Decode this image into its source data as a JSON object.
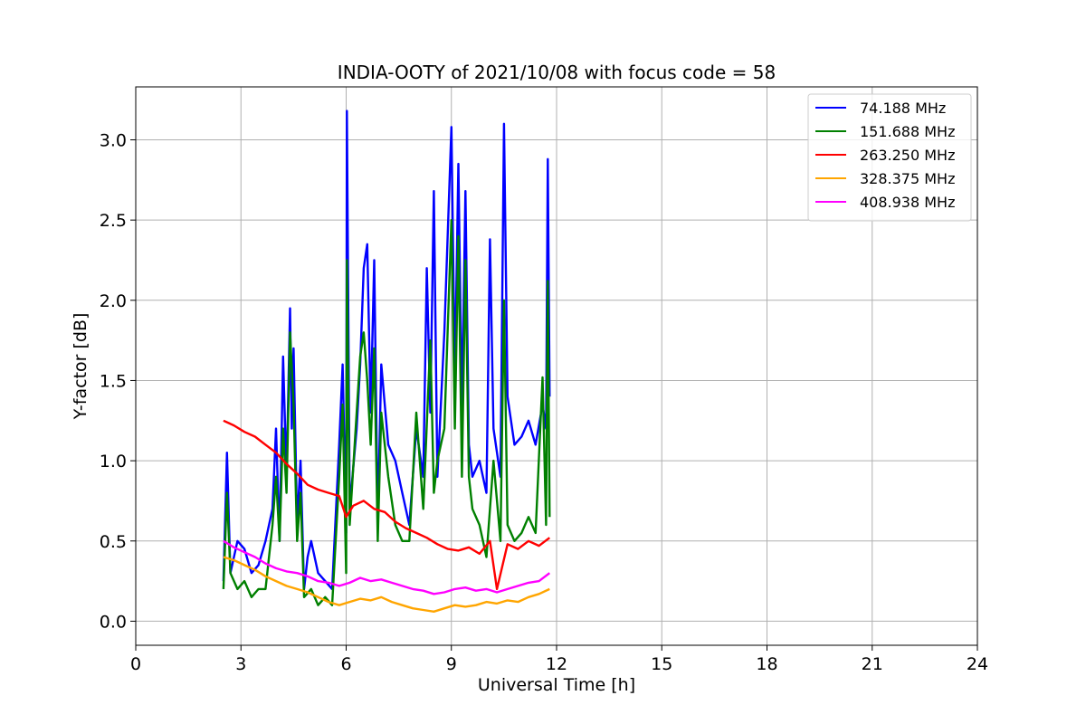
{
  "chart_data": {
    "type": "line",
    "title": "INDIA-OOTY of 2021/10/08 with focus code = 58",
    "xlabel": "Universal Time [h]",
    "ylabel": "Y-factor [dB]",
    "xlim": [
      0,
      24
    ],
    "ylim": [
      -0.15,
      3.33
    ],
    "xticks": [
      0,
      3,
      6,
      9,
      12,
      15,
      18,
      21,
      24
    ],
    "xtick_labels": [
      "0",
      "3",
      "6",
      "9",
      "12",
      "15",
      "18",
      "21",
      "24"
    ],
    "yticks": [
      0.0,
      0.5,
      1.0,
      1.5,
      2.0,
      2.5,
      3.0
    ],
    "ytick_labels": [
      "0.0",
      "0.5",
      "1.0",
      "1.5",
      "2.0",
      "2.5",
      "3.0"
    ],
    "grid": true,
    "legend_position": "top-right",
    "series": [
      {
        "name": " 74.188 MHz",
        "color": "#0000ff",
        "x": [
          2.5,
          2.6,
          2.7,
          2.9,
          3.1,
          3.3,
          3.5,
          3.7,
          3.9,
          4.0,
          4.1,
          4.2,
          4.3,
          4.4,
          4.45,
          4.5,
          4.6,
          4.7,
          4.8,
          4.9,
          5.0,
          5.2,
          5.4,
          5.6,
          5.8,
          5.9,
          6.0,
          6.02,
          6.1,
          6.3,
          6.4,
          6.5,
          6.6,
          6.7,
          6.8,
          6.9,
          7.0,
          7.2,
          7.4,
          7.6,
          7.8,
          8.0,
          8.2,
          8.3,
          8.4,
          8.5,
          8.6,
          8.8,
          9.0,
          9.1,
          9.2,
          9.3,
          9.4,
          9.5,
          9.6,
          9.8,
          10.0,
          10.1,
          10.2,
          10.4,
          10.5,
          10.6,
          10.8,
          11.0,
          11.2,
          11.4,
          11.6,
          11.7,
          11.75,
          11.8
        ],
        "y": [
          0.25,
          1.05,
          0.3,
          0.5,
          0.45,
          0.3,
          0.35,
          0.5,
          0.7,
          1.2,
          0.5,
          1.65,
          0.9,
          1.95,
          1.2,
          1.7,
          0.6,
          1.0,
          0.2,
          0.4,
          0.5,
          0.3,
          0.25,
          0.2,
          1.1,
          1.6,
          0.55,
          3.18,
          0.7,
          1.2,
          1.6,
          2.2,
          2.35,
          1.3,
          2.25,
          0.6,
          1.6,
          1.1,
          1.0,
          0.8,
          0.6,
          1.2,
          0.9,
          2.2,
          1.3,
          2.68,
          0.9,
          1.8,
          3.08,
          1.5,
          2.85,
          1.3,
          2.68,
          1.1,
          0.9,
          1.0,
          0.8,
          2.38,
          1.2,
          0.9,
          3.1,
          1.4,
          1.1,
          1.15,
          1.25,
          1.1,
          1.35,
          1.2,
          2.88,
          1.4
        ]
      },
      {
        "name": "151.688 MHz",
        "color": "#008000",
        "x": [
          2.5,
          2.6,
          2.7,
          2.9,
          3.1,
          3.3,
          3.5,
          3.7,
          3.9,
          4.0,
          4.1,
          4.2,
          4.3,
          4.4,
          4.5,
          4.6,
          4.7,
          4.8,
          5.0,
          5.2,
          5.4,
          5.6,
          5.8,
          5.9,
          6.0,
          6.02,
          6.1,
          6.3,
          6.4,
          6.5,
          6.6,
          6.7,
          6.8,
          6.9,
          7.0,
          7.2,
          7.4,
          7.6,
          7.8,
          8.0,
          8.2,
          8.4,
          8.5,
          8.6,
          8.8,
          9.0,
          9.1,
          9.2,
          9.3,
          9.4,
          9.5,
          9.6,
          9.8,
          10.0,
          10.2,
          10.4,
          10.5,
          10.6,
          10.8,
          11.0,
          11.2,
          11.4,
          11.6,
          11.7,
          11.75,
          11.8
        ],
        "y": [
          0.2,
          0.8,
          0.3,
          0.2,
          0.25,
          0.15,
          0.2,
          0.2,
          0.6,
          0.9,
          0.5,
          1.2,
          0.8,
          1.8,
          1.35,
          0.5,
          0.8,
          0.15,
          0.2,
          0.1,
          0.15,
          0.1,
          0.9,
          1.35,
          0.3,
          2.25,
          0.6,
          1.3,
          1.65,
          1.8,
          1.5,
          1.1,
          1.7,
          0.5,
          1.3,
          0.9,
          0.6,
          0.5,
          0.5,
          1.3,
          0.7,
          1.75,
          0.8,
          1.0,
          1.2,
          2.5,
          1.2,
          2.4,
          0.9,
          2.25,
          0.9,
          0.7,
          0.6,
          0.4,
          1.0,
          0.5,
          2.0,
          0.6,
          0.5,
          0.55,
          0.65,
          0.55,
          1.52,
          0.6,
          2.12,
          0.65
        ]
      },
      {
        "name": "263.250 MHz",
        "color": "#ff0000",
        "x": [
          2.5,
          2.8,
          3.1,
          3.4,
          3.7,
          4.0,
          4.3,
          4.6,
          4.9,
          5.2,
          5.5,
          5.8,
          6.0,
          6.2,
          6.5,
          6.8,
          7.1,
          7.4,
          7.7,
          8.0,
          8.3,
          8.6,
          8.9,
          9.2,
          9.5,
          9.8,
          10.1,
          10.3,
          10.6,
          10.9,
          11.2,
          11.5,
          11.8
        ],
        "y": [
          1.25,
          1.22,
          1.18,
          1.15,
          1.1,
          1.05,
          0.98,
          0.92,
          0.85,
          0.82,
          0.8,
          0.78,
          0.65,
          0.72,
          0.75,
          0.7,
          0.68,
          0.62,
          0.58,
          0.55,
          0.52,
          0.48,
          0.45,
          0.44,
          0.46,
          0.42,
          0.5,
          0.2,
          0.48,
          0.45,
          0.5,
          0.47,
          0.52
        ]
      },
      {
        "name": "328.375 MHz",
        "color": "#ffa500",
        "x": [
          2.5,
          2.8,
          3.1,
          3.4,
          3.7,
          4.0,
          4.3,
          4.6,
          4.9,
          5.2,
          5.5,
          5.8,
          6.1,
          6.4,
          6.7,
          7.0,
          7.3,
          7.6,
          7.9,
          8.2,
          8.5,
          8.8,
          9.1,
          9.4,
          9.7,
          10.0,
          10.3,
          10.6,
          10.9,
          11.2,
          11.5,
          11.8
        ],
        "y": [
          0.4,
          0.38,
          0.35,
          0.32,
          0.28,
          0.25,
          0.22,
          0.2,
          0.18,
          0.15,
          0.12,
          0.1,
          0.12,
          0.14,
          0.13,
          0.15,
          0.12,
          0.1,
          0.08,
          0.07,
          0.06,
          0.08,
          0.1,
          0.09,
          0.1,
          0.12,
          0.11,
          0.13,
          0.12,
          0.15,
          0.17,
          0.2
        ]
      },
      {
        "name": "408.938 MHz",
        "color": "#ff00ff",
        "x": [
          2.5,
          2.8,
          3.1,
          3.4,
          3.7,
          4.0,
          4.3,
          4.6,
          4.9,
          5.2,
          5.5,
          5.8,
          6.1,
          6.4,
          6.7,
          7.0,
          7.3,
          7.6,
          7.9,
          8.2,
          8.5,
          8.8,
          9.1,
          9.4,
          9.7,
          10.0,
          10.3,
          10.6,
          10.9,
          11.2,
          11.5,
          11.8
        ],
        "y": [
          0.5,
          0.46,
          0.43,
          0.4,
          0.36,
          0.33,
          0.31,
          0.3,
          0.28,
          0.25,
          0.24,
          0.22,
          0.24,
          0.27,
          0.25,
          0.26,
          0.24,
          0.22,
          0.2,
          0.19,
          0.17,
          0.18,
          0.2,
          0.21,
          0.19,
          0.2,
          0.18,
          0.2,
          0.22,
          0.24,
          0.25,
          0.3
        ]
      }
    ]
  }
}
